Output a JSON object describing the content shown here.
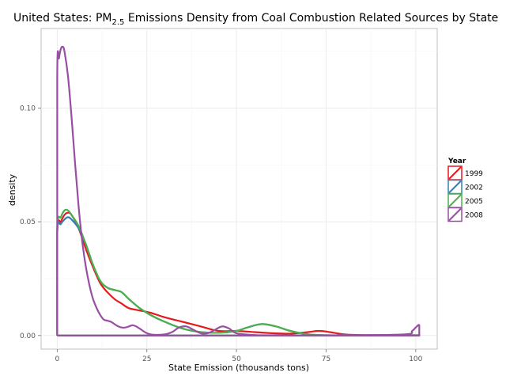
{
  "chart_data": {
    "type": "line",
    "title": "United States: PM",
    "title_subscript": "2.5",
    "title_rest": " Emissions Density from Coal Combustion Related Sources by State",
    "xlabel": "State Emission (thousands tons)",
    "ylabel": "density",
    "xlim": [
      -4.5,
      106
    ],
    "ylim": [
      -0.006,
      0.135
    ],
    "x_ticks": [
      0,
      25,
      50,
      75,
      100
    ],
    "x_tick_labels": [
      "0",
      "25",
      "50",
      "75",
      "100"
    ],
    "y_ticks": [
      0,
      0.05,
      0.1
    ],
    "y_tick_labels": [
      "0.00",
      "0.05",
      "0.10"
    ],
    "grid": true,
    "legend": {
      "title": "Year",
      "position": "right"
    },
    "series": [
      {
        "name": "1999",
        "color": "#e41a1c",
        "x": [
          0,
          0,
          1,
          2,
          3,
          4,
          6,
          8,
          10,
          12,
          14,
          16,
          18,
          20,
          23,
          26,
          30,
          35,
          40,
          45,
          50,
          55,
          60,
          65,
          70,
          73,
          76,
          80,
          85,
          90,
          95,
          101,
          101,
          0
        ],
        "y": [
          0,
          0.046,
          0.05,
          0.053,
          0.054,
          0.053,
          0.047,
          0.038,
          0.03,
          0.023,
          0.019,
          0.016,
          0.014,
          0.012,
          0.011,
          0.01,
          0.008,
          0.006,
          0.004,
          0.002,
          0.002,
          0.0015,
          0.001,
          0.0008,
          0.0015,
          0.002,
          0.0015,
          0.0005,
          0.0002,
          0.0001,
          0.0001,
          0.0001,
          0,
          0
        ]
      },
      {
        "name": "2002",
        "color": "#377eb8",
        "x": [
          0,
          0,
          1,
          2,
          3,
          4,
          6,
          8,
          10,
          12,
          14,
          16,
          18,
          20,
          23,
          26,
          30,
          35,
          40,
          45,
          50,
          53,
          57,
          61,
          65,
          70,
          75,
          80,
          90,
          101,
          101,
          0
        ],
        "y": [
          0,
          0.045,
          0.049,
          0.051,
          0.052,
          0.051,
          0.047,
          0.04,
          0.031,
          0.024,
          0.021,
          0.02,
          0.019,
          0.016,
          0.012,
          0.009,
          0.006,
          0.003,
          0.0015,
          0.0012,
          0.002,
          0.0035,
          0.005,
          0.004,
          0.002,
          0.0005,
          0.0001,
          0.0001,
          0.0001,
          0.0001,
          0,
          0
        ]
      },
      {
        "name": "2005",
        "color": "#4daf4a",
        "x": [
          0,
          0,
          1,
          2,
          3,
          4,
          6,
          8,
          10,
          12,
          14,
          16,
          18,
          20,
          23,
          26,
          30,
          35,
          40,
          45,
          50,
          53,
          57,
          61,
          65,
          70,
          75,
          80,
          90,
          101,
          101,
          0
        ],
        "y": [
          0,
          0.047,
          0.052,
          0.055,
          0.055,
          0.053,
          0.048,
          0.04,
          0.031,
          0.024,
          0.021,
          0.02,
          0.019,
          0.016,
          0.012,
          0.009,
          0.006,
          0.003,
          0.0015,
          0.0012,
          0.002,
          0.0035,
          0.005,
          0.004,
          0.002,
          0.0005,
          0.0001,
          0.0001,
          0.0001,
          0.0001,
          0,
          0
        ]
      },
      {
        "name": "2008",
        "color": "#984ea3",
        "x": [
          0,
          0,
          0.5,
          1,
          1.5,
          2,
          3,
          4,
          5,
          6,
          7,
          8,
          9,
          10,
          11,
          12,
          13,
          14,
          15,
          16,
          17,
          18,
          19,
          20,
          21,
          22,
          23,
          25,
          27,
          30,
          32,
          34,
          36,
          38,
          40,
          42,
          44,
          46,
          48,
          50,
          55,
          60,
          80,
          97,
          99,
          100,
          101,
          101,
          0
        ],
        "y": [
          0,
          0.114,
          0.122,
          0.126,
          0.127,
          0.125,
          0.114,
          0.096,
          0.075,
          0.056,
          0.041,
          0.03,
          0.022,
          0.016,
          0.012,
          0.009,
          0.007,
          0.0065,
          0.006,
          0.005,
          0.004,
          0.0035,
          0.0035,
          0.004,
          0.0045,
          0.004,
          0.003,
          0.001,
          0.0003,
          0.0005,
          0.0015,
          0.0035,
          0.004,
          0.0025,
          0.001,
          0.001,
          0.0025,
          0.004,
          0.003,
          0.001,
          0.0002,
          0.0001,
          0.0001,
          0.0005,
          0.002,
          0.0035,
          0.0045,
          0,
          0
        ]
      }
    ]
  }
}
